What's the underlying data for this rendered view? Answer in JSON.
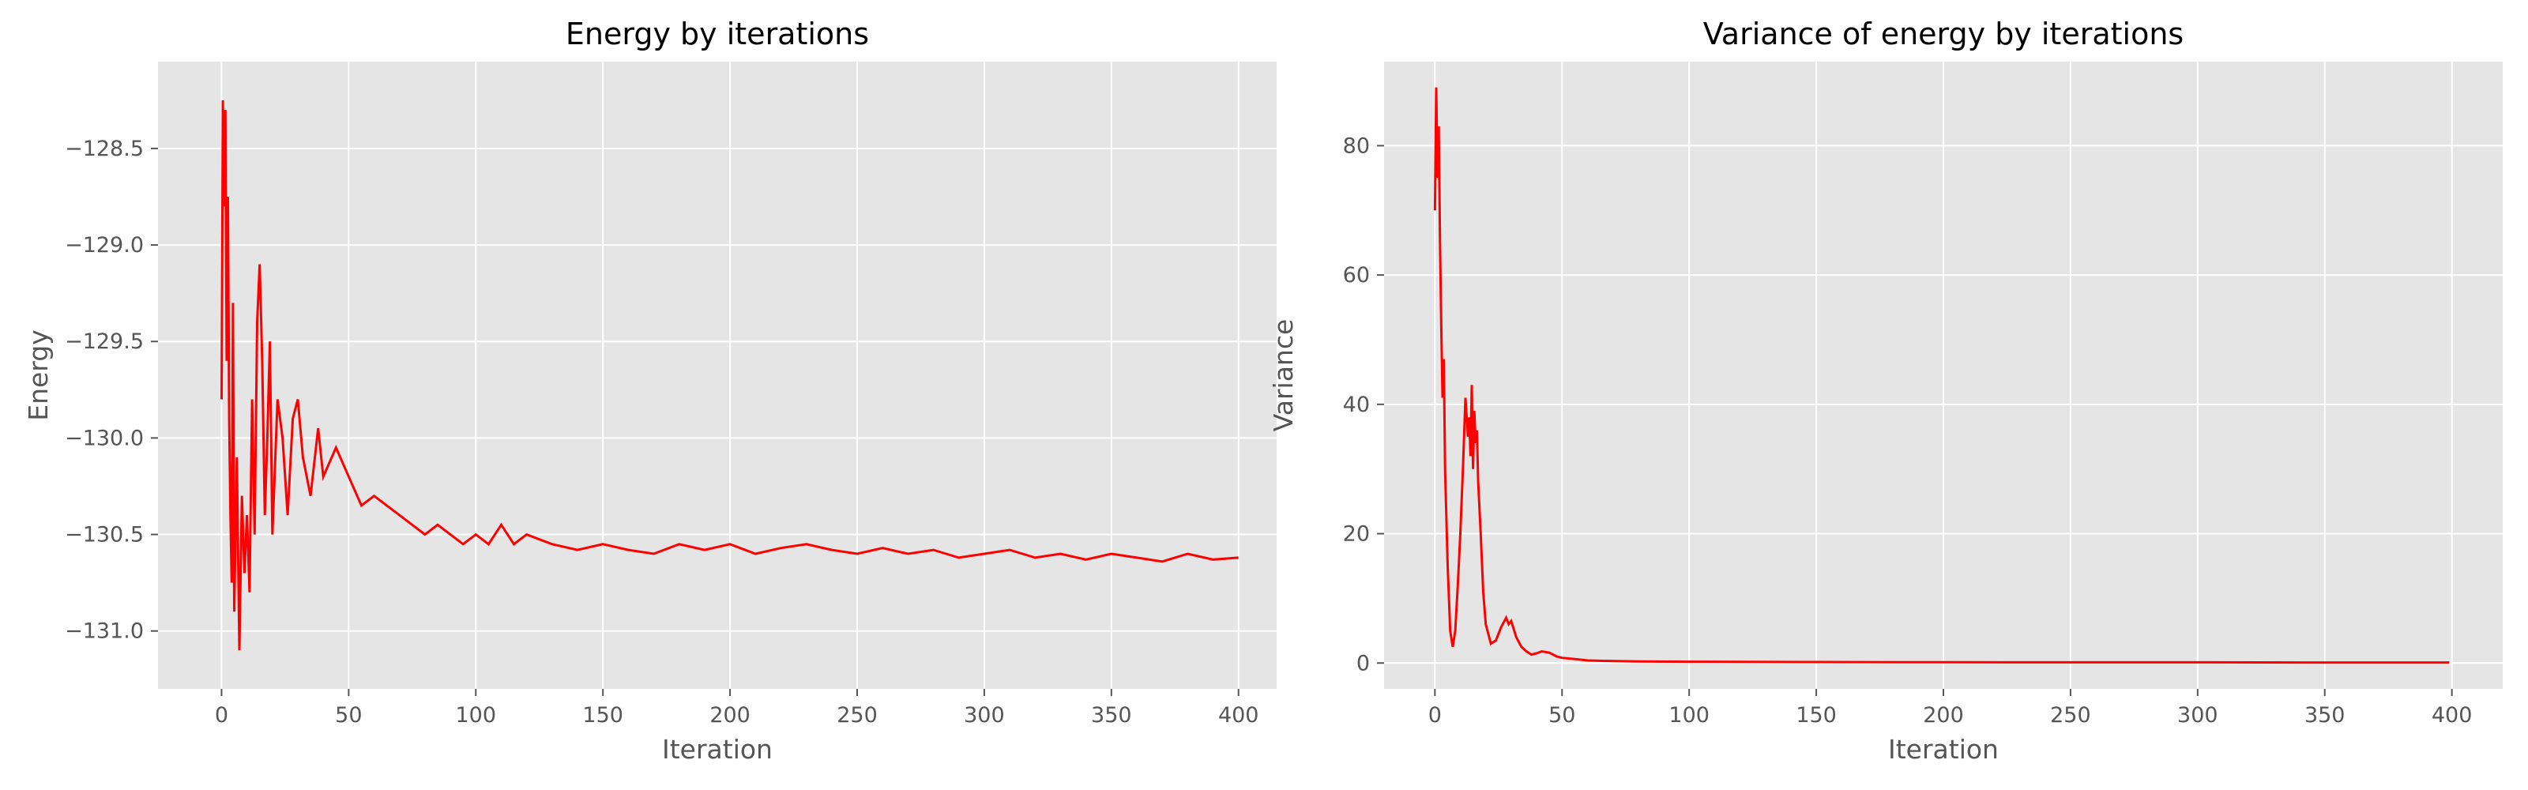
{
  "chart_data": [
    {
      "type": "line",
      "title": "Energy by iterations",
      "xlabel": "Iteration",
      "ylabel": "Energy",
      "xlim": [
        -25,
        415
      ],
      "ylim": [
        -131.3,
        -128.05
      ],
      "xticks": [
        0,
        50,
        100,
        150,
        200,
        250,
        300,
        350,
        400
      ],
      "yticks": [
        -131.0,
        -130.5,
        -130.0,
        -129.5,
        -129.0,
        -128.5
      ],
      "ytick_labels": [
        "−131.0",
        "−130.5",
        "−130.0",
        "−129.5",
        "−129.0",
        "−128.5"
      ],
      "grid": true,
      "legend": "none",
      "color": "#ff0000",
      "series": [
        {
          "x": [
            0,
            0.5,
            1,
            1.5,
            2,
            2.5,
            3,
            3.5,
            4,
            4.5,
            5,
            6,
            7,
            8,
            9,
            10,
            11,
            12,
            13,
            14,
            15,
            16,
            17,
            18,
            19,
            20,
            22,
            24,
            26,
            28,
            30,
            32,
            35,
            38,
            40,
            45,
            50,
            55,
            60,
            65,
            70,
            75,
            80,
            85,
            90,
            95,
            100,
            105,
            110,
            115,
            120,
            130,
            140,
            150,
            160,
            170,
            180,
            190,
            200,
            210,
            220,
            230,
            240,
            250,
            260,
            270,
            280,
            290,
            300,
            310,
            320,
            330,
            340,
            350,
            360,
            370,
            380,
            390,
            400
          ],
          "y": [
            -129.8,
            -128.25,
            -128.8,
            -128.3,
            -129.6,
            -128.75,
            -129.9,
            -130.4,
            -130.75,
            -129.3,
            -130.9,
            -130.1,
            -131.1,
            -130.3,
            -130.7,
            -130.4,
            -130.8,
            -129.8,
            -130.5,
            -129.4,
            -129.1,
            -129.6,
            -130.4,
            -130.0,
            -129.5,
            -130.5,
            -129.8,
            -130.0,
            -130.4,
            -129.9,
            -129.8,
            -130.1,
            -130.3,
            -129.95,
            -130.2,
            -130.05,
            -130.2,
            -130.35,
            -130.3,
            -130.35,
            -130.4,
            -130.45,
            -130.5,
            -130.45,
            -130.5,
            -130.55,
            -130.5,
            -130.55,
            -130.45,
            -130.55,
            -130.5,
            -130.55,
            -130.58,
            -130.55,
            -130.58,
            -130.6,
            -130.55,
            -130.58,
            -130.55,
            -130.6,
            -130.57,
            -130.55,
            -130.58,
            -130.6,
            -130.57,
            -130.6,
            -130.58,
            -130.62,
            -130.6,
            -130.58,
            -130.62,
            -130.6,
            -130.63,
            -130.6,
            -130.62,
            -130.64,
            -130.6,
            -130.63,
            -130.62
          ]
        }
      ]
    },
    {
      "type": "line",
      "title": "Variance of energy by iterations",
      "xlabel": "Iteration",
      "ylabel": "Variance",
      "xlim": [
        -20,
        420
      ],
      "ylim": [
        -4,
        93
      ],
      "xticks": [
        0,
        50,
        100,
        150,
        200,
        250,
        300,
        350,
        400
      ],
      "yticks": [
        0,
        20,
        40,
        60,
        80
      ],
      "ytick_labels": [
        "0",
        "20",
        "40",
        "60",
        "80"
      ],
      "grid": true,
      "legend": "none",
      "color": "#ff0000",
      "series": [
        {
          "x": [
            0,
            0.5,
            1,
            1.5,
            2,
            2.5,
            3,
            3.5,
            4,
            5,
            6,
            7,
            8,
            9,
            10,
            11,
            12,
            13,
            13.5,
            14,
            14.5,
            15,
            15.5,
            16,
            16.5,
            17,
            18,
            19,
            20,
            22,
            24,
            26,
            28,
            29,
            30,
            32,
            34,
            36,
            38,
            40,
            42,
            45,
            48,
            50,
            55,
            60,
            70,
            80,
            100,
            150,
            200,
            250,
            300,
            350,
            399
          ],
          "y": [
            70,
            89,
            75,
            83,
            65,
            52,
            41,
            47,
            30,
            15,
            5,
            2.5,
            5,
            12,
            20,
            30,
            41,
            35,
            38,
            32,
            43,
            30,
            39,
            34,
            36,
            28,
            20,
            11,
            6,
            3,
            3.5,
            5.5,
            7,
            6,
            6.5,
            4,
            2.5,
            1.8,
            1.3,
            1.5,
            1.8,
            1.6,
            1.0,
            0.8,
            0.6,
            0.4,
            0.3,
            0.25,
            0.2,
            0.15,
            0.12,
            0.1,
            0.1,
            0.08,
            0.08
          ]
        }
      ]
    }
  ]
}
